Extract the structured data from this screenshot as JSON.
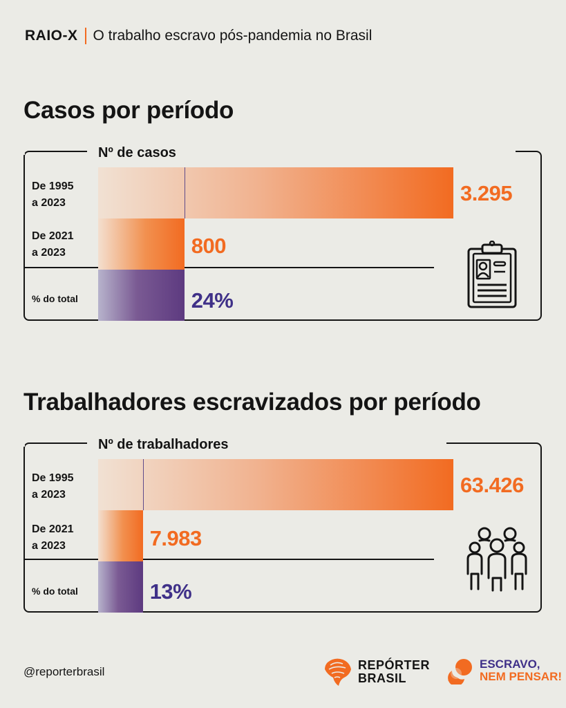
{
  "header": {
    "tag": "RAIO-X",
    "title": "O trabalho escravo pós-pandemia no Brasil"
  },
  "section_cases": {
    "title": "Casos por período"
  },
  "section_workers": {
    "title": "Trabalhadores escravizados por período"
  },
  "chart_data": [
    {
      "type": "bar",
      "title": "Casos por período",
      "axis_title": "Nº de casos",
      "categories": [
        [
          "De 1995",
          "a 2023"
        ],
        [
          "De 2021",
          "a 2023"
        ],
        [
          "% do total",
          ""
        ]
      ],
      "values": [
        3295,
        800,
        24
      ],
      "value_labels": [
        "3.295",
        "800",
        "24%"
      ],
      "percent_of_total": 24,
      "icon": "clipboard-icon"
    },
    {
      "type": "bar",
      "title": "Trabalhadores escravizados por período",
      "axis_title": "Nº de trabalhadores",
      "categories": [
        [
          "De 1995",
          "a 2023"
        ],
        [
          "De 2021",
          "a 2023"
        ],
        [
          "% do total",
          ""
        ]
      ],
      "values": [
        63426,
        7983,
        13
      ],
      "value_labels": [
        "63.426",
        "7.983",
        "13%"
      ],
      "percent_of_total": 13,
      "icon": "people-group-icon"
    }
  ],
  "colors": {
    "orange": "#f26b21",
    "purple": "#3f3088",
    "background": "#ebebe6"
  },
  "footer": {
    "handle": "@reporterbrasil",
    "logo_reporter": [
      "REPÓRTER",
      "BRASIL"
    ],
    "logo_escravo": [
      "ESCRAVO,",
      "NEM PENSAR!"
    ]
  }
}
